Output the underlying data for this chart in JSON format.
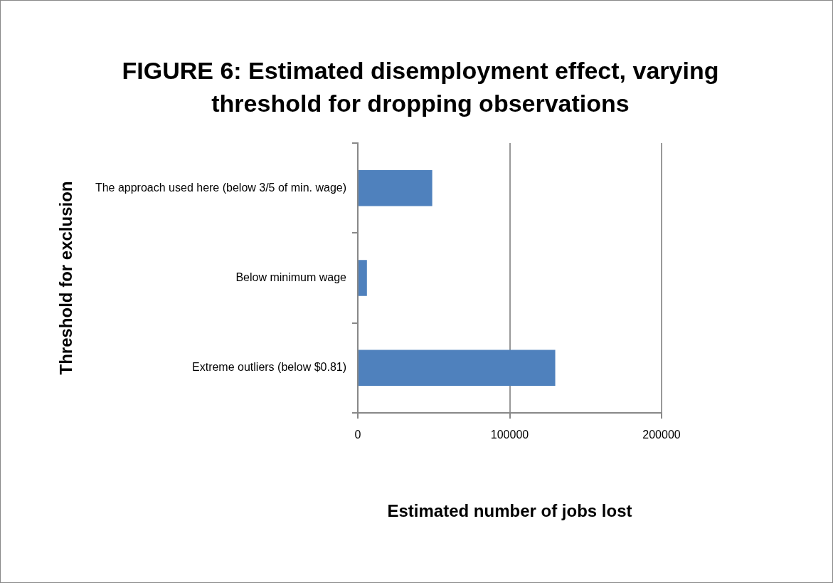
{
  "chart_data": {
    "type": "bar",
    "orientation": "horizontal",
    "title": "FIGURE 6: Estimated disemployment effect, varying threshold for dropping observations",
    "xlabel": "Estimated number of jobs lost",
    "ylabel": "Threshold for exclusion",
    "categories": [
      "The approach used here (below 3/5 of min. wage)",
      "Below minimum wage",
      "Extreme outliers (below $0.81)"
    ],
    "values": [
      49000,
      6000,
      130000
    ],
    "color": "#4f81bd",
    "xlim": [
      0,
      200000
    ],
    "xticks": [
      0,
      100000,
      200000
    ],
    "grid": "x",
    "legend": false
  }
}
